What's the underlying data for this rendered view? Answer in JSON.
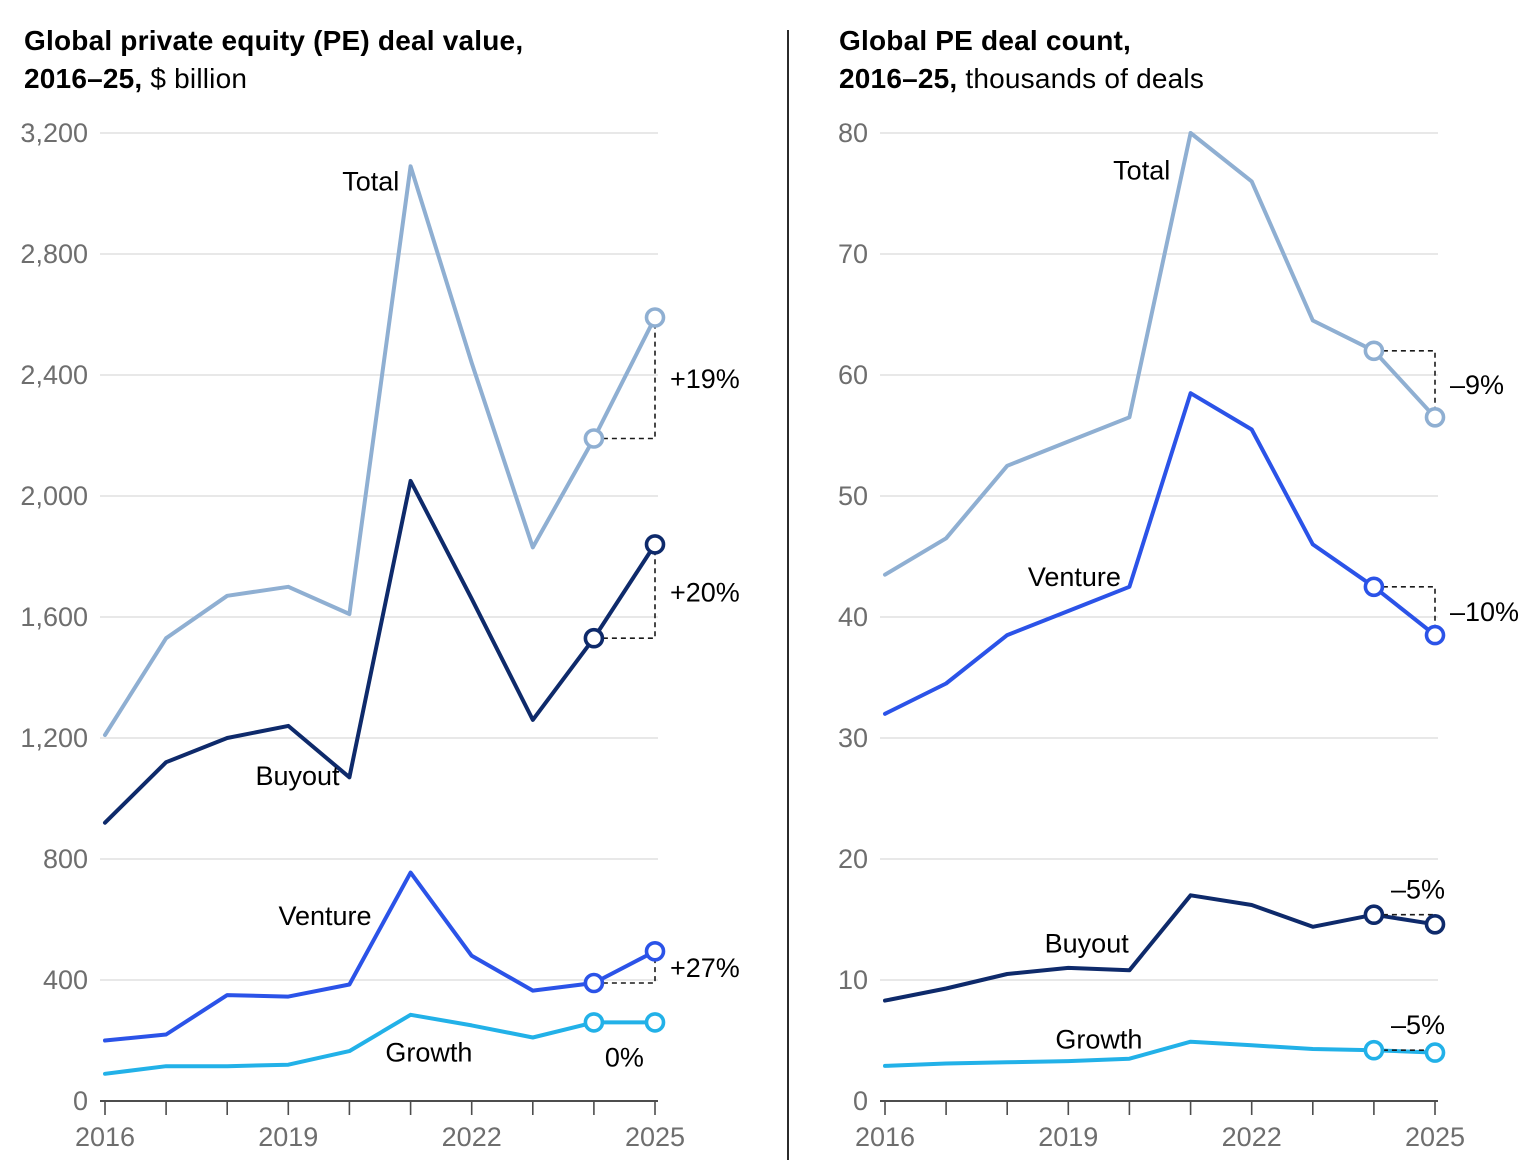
{
  "charts": [
    {
      "title_line1": "Global private equity (PE) deal value,",
      "title_line2_bold": "2016–25,",
      "title_line2_rest": " $ billion"
    },
    {
      "title_line1": "Global PE deal count,",
      "title_line2_bold": "2016–25,",
      "title_line2_rest": " thousands of deals"
    }
  ],
  "colors": {
    "total": "#8fafd2",
    "buyout": "#0e2a6b",
    "venture": "#2b53e8",
    "growth": "#22b1e8",
    "gridline": "#d9d9d9",
    "axis_line": "#4d4d4d",
    "tick_label": "#6e6e6e",
    "dashed_connector": "#1a1a1a",
    "series_label": "#000000"
  },
  "chart_data": [
    {
      "type": "line",
      "title": "Global private equity (PE) deal value, 2016–25, $ billion",
      "xlabel": "",
      "ylabel": "$ billion",
      "x": [
        2016,
        2017,
        2018,
        2019,
        2020,
        2021,
        2022,
        2023,
        2024,
        2025
      ],
      "xticks_labeled": [
        2016,
        2019,
        2022,
        2025
      ],
      "ylim": [
        0,
        3200
      ],
      "ystep": 400,
      "ytick_labels": [
        "0",
        "400",
        "800",
        "1,200",
        "1,600",
        "2,000",
        "2,400",
        "2,800",
        "3,200"
      ],
      "grid": "horizontal",
      "legend_position": "inline-labels",
      "marker_years": [
        2024,
        2025
      ],
      "series": [
        {
          "name": "Total",
          "color_key": "total",
          "values": [
            1210,
            1530,
            1670,
            1700,
            1610,
            3090,
            2440,
            1830,
            2190,
            2590
          ],
          "annotation": "+19%",
          "annotation_placement": "right",
          "label_year": 2020.35,
          "label_value": 3040
        },
        {
          "name": "Buyout",
          "color_key": "buyout",
          "values": [
            920,
            1120,
            1200,
            1240,
            1070,
            2050,
            1660,
            1260,
            1530,
            1840
          ],
          "annotation": "+20%",
          "annotation_placement": "right",
          "label_year": 2019.15,
          "label_value": 1075
        },
        {
          "name": "Venture",
          "color_key": "venture",
          "values": [
            200,
            220,
            350,
            345,
            385,
            755,
            480,
            365,
            390,
            495
          ],
          "annotation": "+27%",
          "annotation_placement": "right",
          "label_year": 2019.6,
          "label_value": 612
        },
        {
          "name": "Growth",
          "color_key": "growth",
          "values": [
            90,
            115,
            115,
            120,
            165,
            285,
            250,
            210,
            260,
            260
          ],
          "annotation": "0%",
          "annotation_placement": "below",
          "label_year": 2021.3,
          "label_value": 160
        }
      ]
    },
    {
      "type": "line",
      "title": "Global PE deal count, 2016–25, thousands of deals",
      "xlabel": "",
      "ylabel": "thousands of deals",
      "x": [
        2016,
        2017,
        2018,
        2019,
        2020,
        2021,
        2022,
        2023,
        2024,
        2025
      ],
      "xticks_labeled": [
        2016,
        2019,
        2022,
        2025
      ],
      "ylim": [
        0,
        80
      ],
      "ystep": 10,
      "ytick_labels": [
        "0",
        "10",
        "20",
        "30",
        "40",
        "50",
        "60",
        "70",
        "80"
      ],
      "grid": "horizontal",
      "legend_position": "inline-labels",
      "marker_years": [
        2024,
        2025
      ],
      "series": [
        {
          "name": "Total",
          "color_key": "total",
          "values": [
            43.5,
            46.5,
            52.5,
            54.5,
            56.5,
            80,
            76,
            64.5,
            62,
            56.5
          ],
          "annotation": "–9%",
          "annotation_placement": "right",
          "label_year": 2020.2,
          "label_value": 76.9
        },
        {
          "name": "Venture",
          "color_key": "venture",
          "values": [
            32,
            34.5,
            38.5,
            40.5,
            42.5,
            58.5,
            55.5,
            46,
            42.5,
            38.5
          ],
          "annotation": "–10%",
          "annotation_placement": "right",
          "label_year": 2019.1,
          "label_value": 43.3
        },
        {
          "name": "Buyout",
          "color_key": "buyout",
          "values": [
            8.3,
            9.3,
            10.5,
            11,
            10.8,
            17,
            16.2,
            14.4,
            15.4,
            14.6
          ],
          "annotation": "–5%",
          "annotation_placement": "above",
          "label_year": 2019.3,
          "label_value": 13.0
        },
        {
          "name": "Growth",
          "color_key": "growth",
          "values": [
            2.9,
            3.1,
            3.2,
            3.3,
            3.5,
            4.9,
            4.6,
            4.3,
            4.2,
            4.0
          ],
          "annotation": "–5%",
          "annotation_placement": "above",
          "label_year": 2019.5,
          "label_value": 5.1
        }
      ]
    }
  ]
}
